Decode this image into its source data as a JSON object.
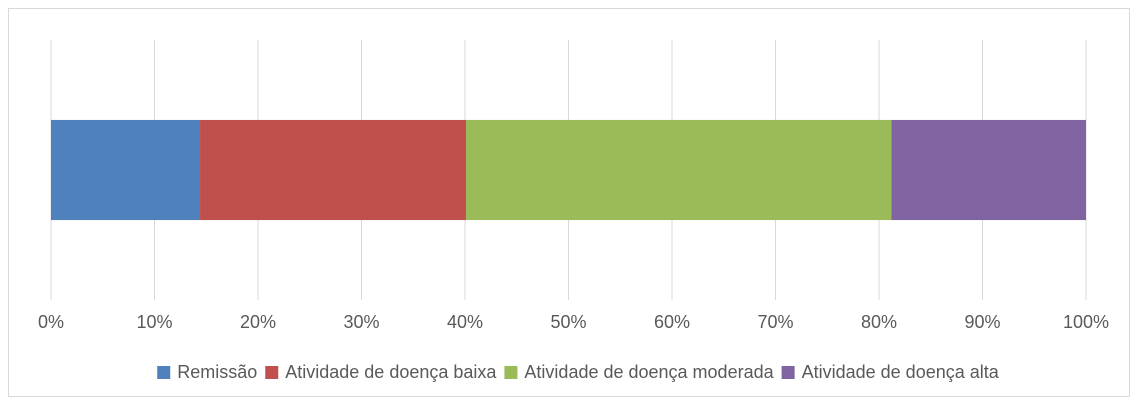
{
  "chart_data": {
    "type": "stacked-bar-horizontal",
    "categories": [
      null
    ],
    "series": [
      {
        "name": "Remissão",
        "color": "#4f81bd",
        "values": [
          14.4
        ]
      },
      {
        "name": "Atividade de doença baixa",
        "color": "#c0504d",
        "values": [
          25.7
        ]
      },
      {
        "name": "Atividade de doença moderada",
        "color": "#9bbb59",
        "values": [
          41.1
        ]
      },
      {
        "name": "Atividade de doença alta",
        "color": "#8064a2",
        "values": [
          18.8
        ]
      }
    ],
    "xlim": [
      0,
      100
    ],
    "xticks": [
      {
        "value": 0,
        "label": "0%"
      },
      {
        "value": 10,
        "label": "10%"
      },
      {
        "value": 20,
        "label": "20%"
      },
      {
        "value": 30,
        "label": "30%"
      },
      {
        "value": 40,
        "label": "40%"
      },
      {
        "value": 50,
        "label": "50%"
      },
      {
        "value": 60,
        "label": "60%"
      },
      {
        "value": 70,
        "label": "70%"
      },
      {
        "value": 80,
        "label": "80%"
      },
      {
        "value": 90,
        "label": "90%"
      },
      {
        "value": 100,
        "label": "100%"
      }
    ],
    "grid": true,
    "legend": "bottom"
  }
}
